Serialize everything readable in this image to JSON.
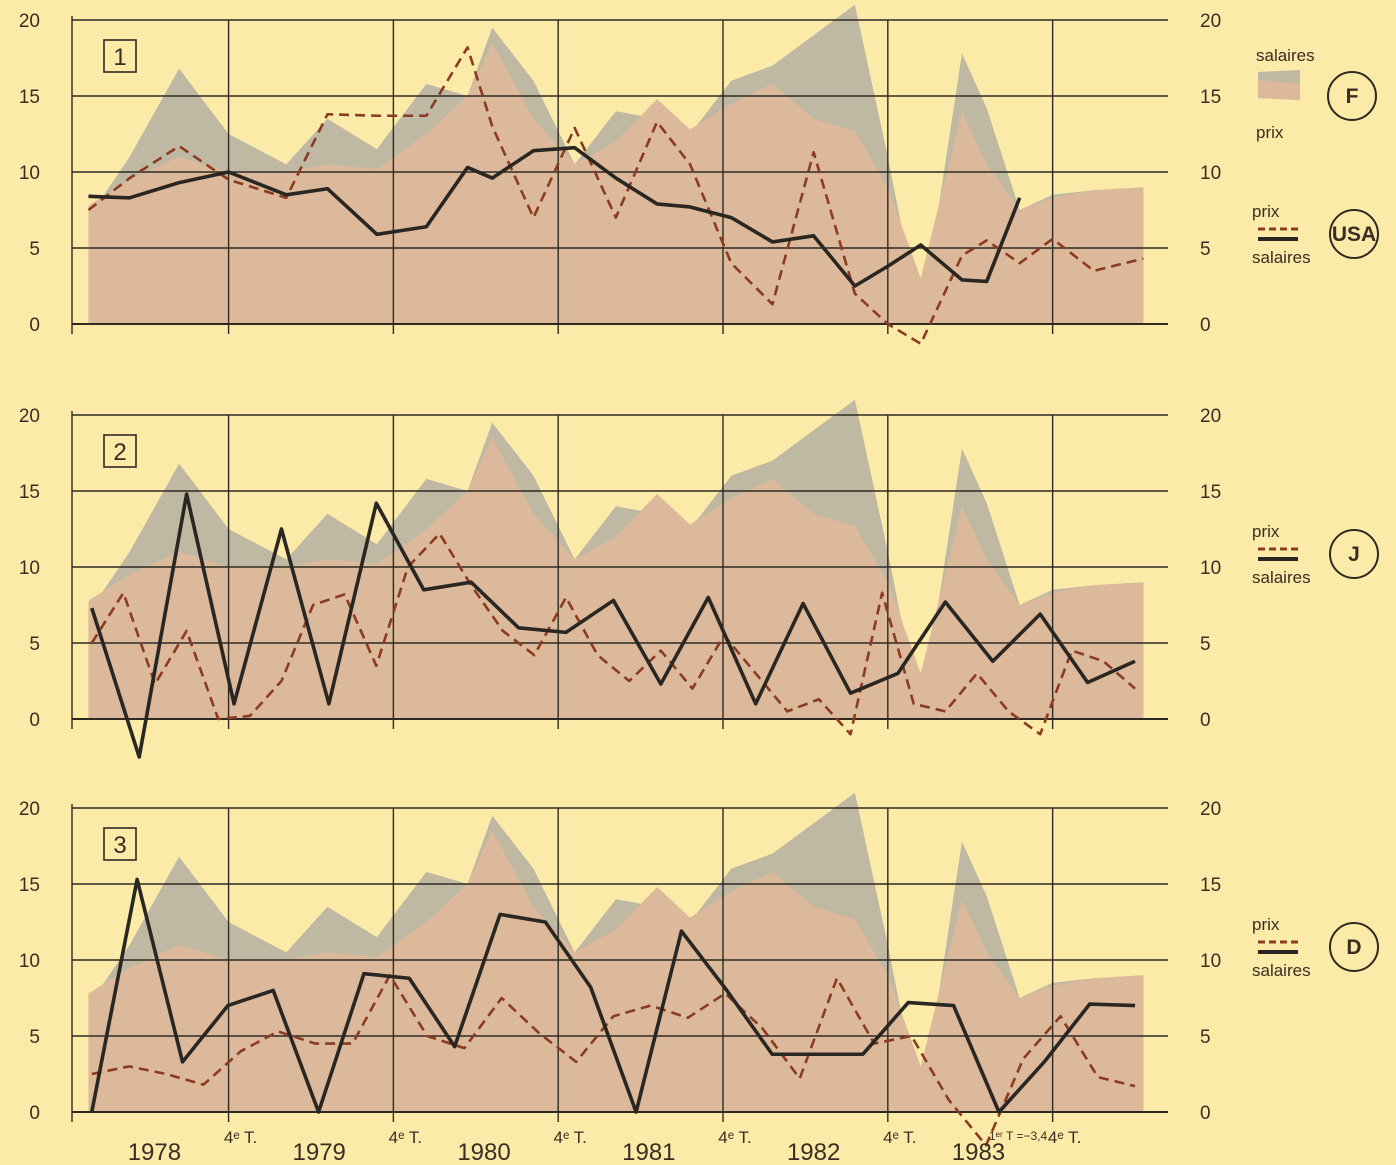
{
  "chart_data": [
    {
      "type": "area",
      "panel_label": "1",
      "y_ticks": [
        "20",
        "15",
        "10",
        "5",
        "0"
      ],
      "ylim": [
        0,
        20
      ],
      "x": [
        1977.65,
        1977.9,
        1978.2,
        1978.5,
        1978.85,
        1979.1,
        1979.4,
        1979.7,
        1979.95,
        1980.1,
        1980.35,
        1980.6,
        1980.85,
        1981.1,
        1981.3,
        1981.55,
        1981.8,
        1982.05,
        1982.3,
        1982.5,
        1982.7,
        1982.95,
        1983.1,
        1983.3,
        1983.5,
        1983.75,
        1984.05
      ],
      "series": [
        {
          "name": "salaires",
          "values": [
            7,
            11,
            16.8,
            12.5,
            10.5,
            13.5,
            11.5,
            15.8,
            15,
            19.5,
            16,
            10.5,
            14,
            13.5,
            12.5,
            16,
            17,
            19,
            21,
            11,
            0,
            17.8,
            14.2,
            7.5,
            8.5,
            8.8,
            9
          ]
        },
        {
          "name": "prix",
          "values": [
            7.8,
            9.5,
            11,
            10,
            10,
            10.5,
            10.2,
            12.5,
            15,
            18.5,
            13.5,
            10.5,
            12,
            14.8,
            12.8,
            14.5,
            15.8,
            13.5,
            12.7,
            9,
            3,
            14,
            10.5,
            7.5,
            8.3,
            8.8,
            9
          ]
        },
        {
          "name": "prix",
          "values": [
            7.5,
            9.6,
            11.7,
            9.5,
            8.3,
            13.8,
            13.7,
            13.7,
            18.2,
            13,
            7,
            12.9,
            7,
            13.3,
            10.5,
            4,
            1.3,
            11.3,
            2,
            0,
            -1.3,
            4.5,
            5.5,
            4,
            5.6,
            3.5,
            4.3
          ]
        },
        {
          "name": "salaires",
          "values": [
            8.4,
            8.3,
            9.3,
            10,
            8.5,
            8.9,
            5.9,
            6.4,
            10.3,
            9.6,
            11.4,
            11.6,
            9.6,
            7.9,
            7.7,
            7,
            5.4,
            5.8,
            2.5,
            3.8,
            5.2,
            2.9,
            2.8,
            8.3,
            null,
            null,
            null
          ]
        }
      ],
      "legend": {
        "top_label": "salaires",
        "bottom_label": "prix",
        "badge": "F",
        "line_top_label": "prix",
        "line_bottom_label": "salaires",
        "line_badge": "USA"
      }
    },
    {
      "type": "line",
      "panel_label": "2",
      "y_ticks": [
        "20",
        "15",
        "10",
        "5",
        "0"
      ],
      "ylim": [
        0,
        20
      ],
      "series": [
        {
          "name": "prix",
          "values": [
            5,
            8.3,
            2.3,
            5.8,
            0,
            0.2,
            2.5,
            7.5,
            8.2,
            3.5,
            10,
            12.2,
            8.8,
            5.8,
            4.2,
            8,
            4.2,
            2.5,
            4.5,
            2,
            5.5,
            3,
            0.5,
            1.3,
            -1,
            8.3,
            1,
            0.5,
            3,
            0.5,
            -1,
            4.5,
            3.8,
            2
          ]
        },
        {
          "name": "salaires",
          "values": [
            7.3,
            -2.5,
            14.8,
            1,
            12.5,
            1,
            14.2,
            8.5,
            9,
            6,
            5.7,
            7.8,
            2.3,
            8,
            1,
            7.6,
            1.7,
            3,
            7.7,
            3.8,
            6.9,
            2.4,
            3.8
          ]
        }
      ],
      "legend": {
        "top_label": "prix",
        "bottom_label": "salaires",
        "badge": "J"
      }
    },
    {
      "type": "line",
      "panel_label": "3",
      "y_ticks": [
        "20",
        "15",
        "10",
        "5",
        "0"
      ],
      "ylim": [
        0,
        20
      ],
      "series": [
        {
          "name": "prix",
          "values": [
            2.5,
            3,
            2.5,
            1.8,
            4,
            5.3,
            4.5,
            4.5,
            9,
            5,
            4.2,
            7.5,
            5.2,
            3.3,
            6.3,
            7,
            6.2,
            7.8,
            5.5,
            2.2,
            8.8,
            4.5,
            5,
            0.8,
            -2.2,
            3.5,
            6.3,
            2.3,
            1.7
          ]
        },
        {
          "name": "salaires",
          "values": [
            0,
            15.3,
            3.3,
            7,
            8,
            0,
            9.1,
            8.8,
            4.3,
            13,
            12.5,
            8.2,
            0,
            11.9,
            8,
            3.8,
            3.8,
            3.8,
            7.2,
            7,
            0,
            3.3,
            7.1,
            7
          ]
        }
      ],
      "legend": {
        "top_label": "prix",
        "bottom_label": "salaires",
        "badge": "D"
      }
    }
  ],
  "x_axis": {
    "years": [
      "1978",
      "1979",
      "1980",
      "1981",
      "1982",
      "1983"
    ],
    "quarter_label": "4ᵉ T.",
    "note": "1ᵉʳ T =−3,4"
  },
  "colors": {
    "background": "#fbeaa8",
    "salaires_area": "#bfb8a2",
    "prix_area": "#dcb99a",
    "prix_line": "#8b3b22",
    "salaires_line": "#2a2722",
    "grid": "#2e2a22"
  }
}
